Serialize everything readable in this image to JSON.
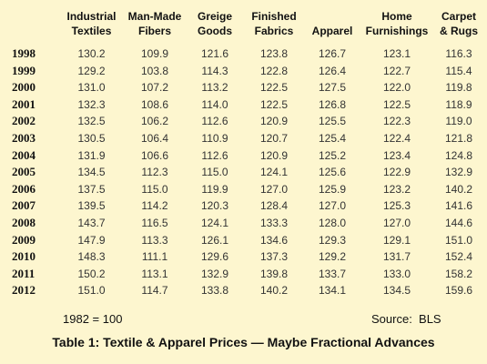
{
  "chart_data": {
    "type": "table",
    "columns": [
      "",
      "Industrial Textiles",
      "Man-Made Fibers",
      "Greige Goods",
      "Finished Fabrics",
      "Apparel",
      "Home Furnishings",
      "Carpet & Rugs"
    ],
    "header_lines": [
      [
        "",
        ""
      ],
      [
        "Industrial",
        "Textiles"
      ],
      [
        "Man-Made",
        "Fibers"
      ],
      [
        "Greige",
        "Goods"
      ],
      [
        "Finished",
        "Fabrics"
      ],
      [
        "",
        "Apparel"
      ],
      [
        "Home",
        "Furnishings"
      ],
      [
        "Carpet",
        "& Rugs"
      ]
    ],
    "rows": [
      [
        "1998",
        "130.2",
        "109.9",
        "121.6",
        "123.8",
        "126.7",
        "123.1",
        "116.3"
      ],
      [
        "1999",
        "129.2",
        "103.8",
        "114.3",
        "122.8",
        "126.4",
        "122.7",
        "115.4"
      ],
      [
        "2000",
        "131.0",
        "107.2",
        "113.2",
        "122.5",
        "127.5",
        "122.0",
        "119.8"
      ],
      [
        "2001",
        "132.3",
        "108.6",
        "114.0",
        "122.5",
        "126.8",
        "122.5",
        "118.9"
      ],
      [
        "2002",
        "132.5",
        "106.2",
        "112.6",
        "120.9",
        "125.5",
        "122.3",
        "119.0"
      ],
      [
        "2003",
        "130.5",
        "106.4",
        "110.9",
        "120.7",
        "125.4",
        "122.4",
        "121.8"
      ],
      [
        "2004",
        "131.9",
        "106.6",
        "112.6",
        "120.9",
        "125.2",
        "123.4",
        "124.8"
      ],
      [
        "2005",
        "134.5",
        "112.3",
        "115.0",
        "124.1",
        "125.6",
        "122.9",
        "132.9"
      ],
      [
        "2006",
        "137.5",
        "115.0",
        "119.9",
        "127.0",
        "125.9",
        "123.2",
        "140.2"
      ],
      [
        "2007",
        "139.5",
        "114.2",
        "120.3",
        "128.4",
        "127.0",
        "125.3",
        "141.6"
      ],
      [
        "2008",
        "143.7",
        "116.5",
        "124.1",
        "133.3",
        "128.0",
        "127.0",
        "144.6"
      ],
      [
        "2009",
        "147.9",
        "113.3",
        "126.1",
        "134.6",
        "129.3",
        "129.1",
        "151.0"
      ],
      [
        "2010",
        "148.3",
        "111.1",
        "129.6",
        "137.3",
        "129.2",
        "131.7",
        "152.4"
      ],
      [
        "2011",
        "150.2",
        "113.1",
        "132.9",
        "139.8",
        "133.7",
        "133.0",
        "158.2"
      ],
      [
        "2012",
        "151.0",
        "114.7",
        "133.8",
        "140.2",
        "134.1",
        "134.5",
        "159.6"
      ]
    ],
    "base_note": "1982 = 100",
    "source_note": "Source:  BLS",
    "title": "Table 1: Textile & Apparel Prices — Maybe Fractional Advances"
  },
  "colors": {
    "background": "#fdf6cf",
    "text": "#111111",
    "value_text": "#333333"
  }
}
